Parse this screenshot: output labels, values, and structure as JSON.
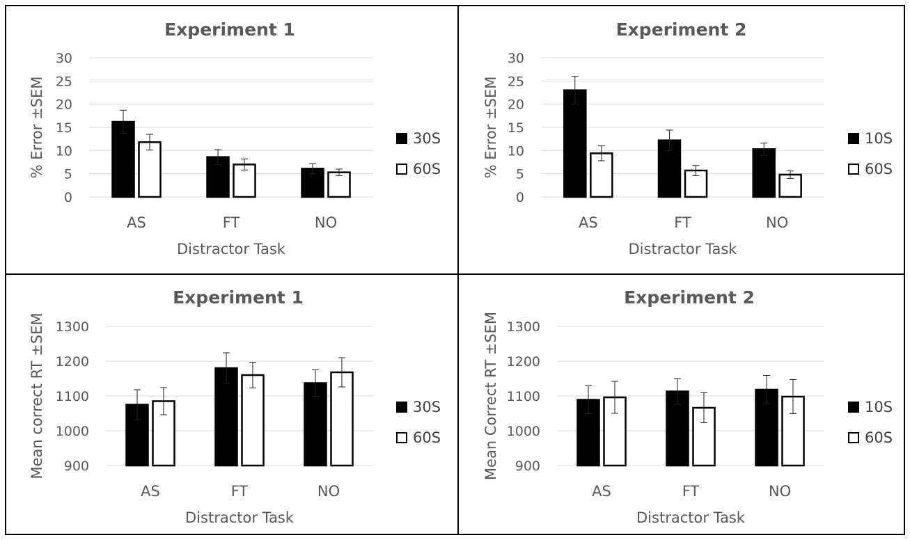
{
  "chart_data": [
    {
      "type": "bar",
      "title": "Experiment 1",
      "xlabel": "Distractor Task",
      "ylabel": "% Error ±SEM",
      "ylim": [
        0,
        30
      ],
      "yticks": [
        0,
        5,
        10,
        15,
        20,
        25,
        30
      ],
      "grid": true,
      "legend_position": "right",
      "categories": [
        "AS",
        "FT",
        "NO"
      ],
      "series": [
        {
          "name": "30S",
          "fill": "#000000",
          "values": [
            16.2,
            8.6,
            6.1
          ],
          "sem": [
            2.5,
            1.6,
            1.1
          ]
        },
        {
          "name": "60S",
          "fill": "#ffffff",
          "values": [
            11.8,
            7.0,
            5.3
          ],
          "sem": [
            1.7,
            1.2,
            0.7
          ]
        }
      ]
    },
    {
      "type": "bar",
      "title": "Experiment 2",
      "xlabel": "Distractor Task",
      "ylabel": "% Error ±SEM",
      "ylim": [
        0,
        30
      ],
      "yticks": [
        0,
        5,
        10,
        15,
        20,
        25,
        30
      ],
      "grid": true,
      "legend_position": "right",
      "categories": [
        "AS",
        "FT",
        "NO"
      ],
      "series": [
        {
          "name": "10S",
          "fill": "#000000",
          "values": [
            23.0,
            12.2,
            10.3
          ],
          "sem": [
            3.0,
            2.2,
            1.3
          ]
        },
        {
          "name": "60S",
          "fill": "#ffffff",
          "values": [
            9.4,
            5.7,
            4.8
          ],
          "sem": [
            1.6,
            1.1,
            0.8
          ]
        }
      ]
    },
    {
      "type": "bar",
      "title": "Experiment 1",
      "xlabel": "Distractor Task",
      "ylabel": "Mean correct RT ±SEM",
      "ylim": [
        900,
        1300
      ],
      "yticks": [
        900,
        1000,
        1100,
        1200,
        1300
      ],
      "grid": true,
      "legend_position": "right",
      "categories": [
        "AS",
        "FT",
        "NO"
      ],
      "series": [
        {
          "name": "30S",
          "fill": "#000000",
          "values": [
            1075,
            1180,
            1137
          ],
          "sem": [
            43,
            44,
            38
          ]
        },
        {
          "name": "60S",
          "fill": "#ffffff",
          "values": [
            1085,
            1160,
            1168
          ],
          "sem": [
            39,
            37,
            42
          ]
        }
      ]
    },
    {
      "type": "bar",
      "title": "Experiment 2",
      "xlabel": "Distractor Task",
      "ylabel": "Mean Correct RT ±SEM",
      "ylim": [
        900,
        1300
      ],
      "yticks": [
        900,
        1000,
        1100,
        1200,
        1300
      ],
      "grid": true,
      "legend_position": "right",
      "categories": [
        "AS",
        "FT",
        "NO"
      ],
      "series": [
        {
          "name": "10S",
          "fill": "#000000",
          "values": [
            1089,
            1113,
            1118
          ],
          "sem": [
            40,
            37,
            41
          ]
        },
        {
          "name": "60S",
          "fill": "#ffffff",
          "values": [
            1096,
            1066,
            1098
          ],
          "sem": [
            46,
            43,
            49
          ]
        }
      ]
    }
  ]
}
